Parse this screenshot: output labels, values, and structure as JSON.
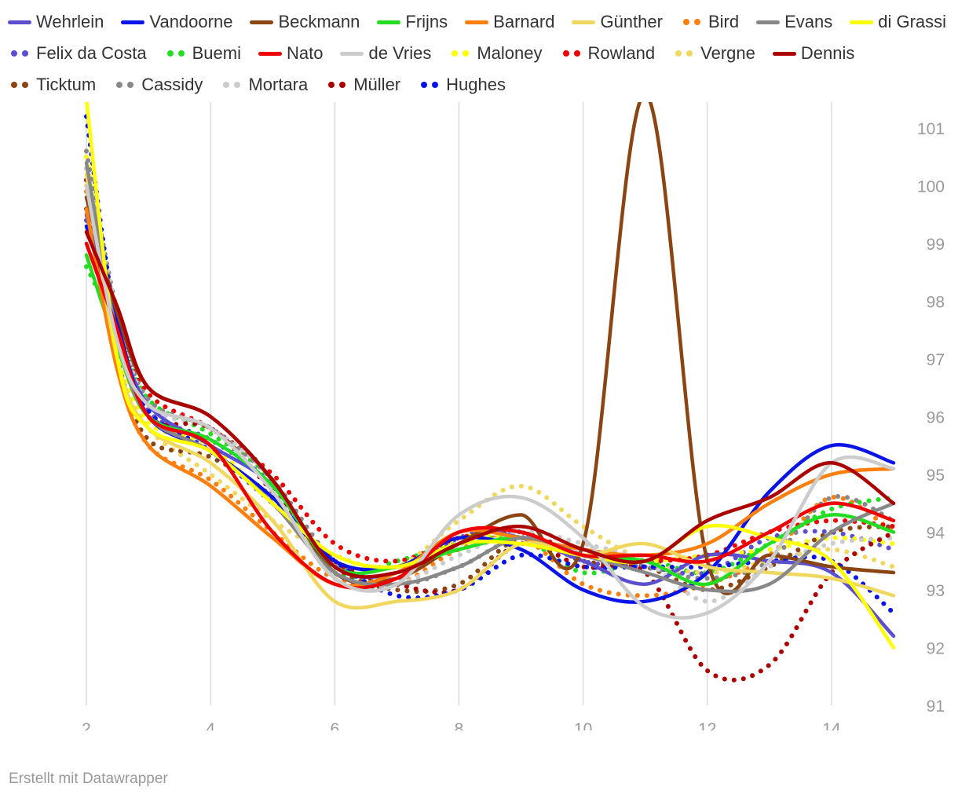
{
  "chart_data": {
    "type": "line",
    "title": "",
    "xlabel": "",
    "ylabel": "",
    "xlim": [
      2,
      15
    ],
    "ylim": [
      91,
      101.8
    ],
    "x_ticks": [
      2,
      4,
      6,
      8,
      10,
      12,
      14
    ],
    "y_ticks": [
      91,
      92,
      93,
      94,
      95,
      96,
      97,
      98,
      99,
      100,
      101
    ],
    "grid": "vertical",
    "legend_position": "top",
    "x": [
      2,
      2.5,
      3,
      4,
      5,
      6,
      7,
      8,
      9,
      10,
      11,
      12,
      13,
      14,
      15
    ],
    "series": [
      {
        "name": "Wehrlein",
        "color": "#5b4fcf",
        "style": "solid",
        "values": [
          99.5,
          97.5,
          96.2,
          95.5,
          94.8,
          93.4,
          93.3,
          94.0,
          93.9,
          93.5,
          93.1,
          93.6,
          93.5,
          93.3,
          92.2
        ]
      },
      {
        "name": "Vandoorne",
        "color": "#0a14e6",
        "style": "solid",
        "values": [
          99.3,
          97.6,
          96.0,
          95.4,
          94.6,
          93.5,
          93.4,
          93.9,
          93.7,
          93.0,
          92.8,
          93.3,
          94.7,
          95.5,
          95.2
        ]
      },
      {
        "name": "Beckmann",
        "color": "#8b4513",
        "style": "solid",
        "values": [
          99.8,
          97.8,
          96.5,
          96.0,
          94.9,
          93.3,
          93.2,
          93.8,
          94.3,
          93.8,
          101.8,
          93.5,
          93.6,
          93.4,
          93.3
        ]
      },
      {
        "name": "Frijns",
        "color": "#22dd22",
        "style": "solid",
        "values": [
          98.8,
          97.2,
          96.0,
          95.6,
          94.8,
          93.4,
          93.4,
          93.7,
          93.9,
          93.6,
          93.5,
          93.1,
          93.8,
          94.3,
          94.0
        ]
      },
      {
        "name": "Barnard",
        "color": "#ff7f0e",
        "style": "solid",
        "values": [
          99.6,
          96.8,
          95.5,
          94.8,
          93.9,
          93.1,
          93.3,
          94.0,
          93.9,
          93.7,
          93.6,
          93.8,
          94.5,
          95.0,
          95.1
        ]
      },
      {
        "name": "Günther",
        "color": "#f0d860",
        "style": "solid",
        "values": [
          100.2,
          97.0,
          95.8,
          95.2,
          94.2,
          92.8,
          92.8,
          93.0,
          93.8,
          93.6,
          93.8,
          93.4,
          93.3,
          93.2,
          92.9
        ]
      },
      {
        "name": "Bird",
        "color": "#ff7f0e",
        "style": "dot",
        "values": [
          99.9,
          96.9,
          95.5,
          94.9,
          94.0,
          93.2,
          93.1,
          93.7,
          93.9,
          93.1,
          92.9,
          93.1,
          93.6,
          94.6,
          94.0
        ]
      },
      {
        "name": "Evans",
        "color": "#888888",
        "style": "solid",
        "values": [
          100.4,
          97.4,
          96.0,
          95.4,
          94.5,
          93.3,
          93.1,
          93.4,
          93.9,
          93.6,
          93.3,
          93.0,
          93.1,
          94.0,
          94.5
        ]
      },
      {
        "name": "di Grassi",
        "color": "#ffff00",
        "style": "solid",
        "values": [
          101.5,
          97.0,
          95.8,
          95.4,
          94.5,
          93.6,
          93.4,
          93.8,
          93.8,
          93.6,
          93.5,
          94.1,
          93.9,
          93.5,
          92.0
        ]
      },
      {
        "name": "Felix da Costa",
        "color": "#5b4fcf",
        "style": "dot",
        "values": [
          99.4,
          97.6,
          96.1,
          95.6,
          94.8,
          93.3,
          93.2,
          93.9,
          94.0,
          93.5,
          93.4,
          93.3,
          93.9,
          94.0,
          93.7
        ]
      },
      {
        "name": "Buemi",
        "color": "#22dd22",
        "style": "dot",
        "values": [
          98.6,
          97.5,
          96.3,
          95.7,
          94.9,
          93.3,
          93.5,
          93.8,
          93.9,
          93.3,
          93.5,
          93.3,
          93.8,
          94.4,
          94.6
        ]
      },
      {
        "name": "Nato",
        "color": "#ee0000",
        "style": "solid",
        "values": [
          99.0,
          97.5,
          96.0,
          95.5,
          94.0,
          93.1,
          93.2,
          94.0,
          94.0,
          93.6,
          93.6,
          93.5,
          94.0,
          94.5,
          94.2
        ]
      },
      {
        "name": "de Vries",
        "color": "#cccccc",
        "style": "solid",
        "values": [
          100.0,
          97.3,
          96.2,
          95.8,
          94.7,
          93.2,
          93.1,
          94.3,
          94.6,
          93.9,
          92.7,
          92.6,
          93.5,
          95.2,
          95.1
        ]
      },
      {
        "name": "Maloney",
        "color": "#ffff00",
        "style": "dot",
        "values": [
          100.5,
          97.2,
          95.9,
          95.5,
          94.5,
          93.5,
          93.4,
          93.9,
          93.9,
          93.6,
          93.5,
          93.6,
          93.7,
          93.9,
          93.8
        ]
      },
      {
        "name": "Rowland",
        "color": "#ee0000",
        "style": "dot",
        "values": [
          100.3,
          97.7,
          96.4,
          95.8,
          95.0,
          93.8,
          93.5,
          93.9,
          94.0,
          93.6,
          93.5,
          93.6,
          94.0,
          94.2,
          94.1
        ]
      },
      {
        "name": "Vergne",
        "color": "#f0d860",
        "style": "dot",
        "values": [
          100.0,
          97.0,
          95.8,
          95.0,
          94.2,
          93.6,
          93.4,
          94.2,
          94.8,
          94.1,
          93.5,
          93.3,
          93.5,
          93.7,
          93.4
        ]
      },
      {
        "name": "Dennis",
        "color": "#aa0000",
        "style": "solid",
        "values": [
          99.2,
          97.9,
          96.5,
          96.0,
          94.9,
          93.4,
          93.3,
          93.8,
          94.1,
          93.7,
          93.5,
          94.2,
          94.6,
          95.2,
          94.5
        ]
      },
      {
        "name": "Ticktum",
        "color": "#8b4513",
        "style": "dot",
        "values": [
          99.6,
          97.0,
          95.6,
          95.3,
          94.6,
          93.4,
          93.0,
          93.1,
          93.9,
          93.5,
          93.4,
          93.0,
          93.4,
          94.0,
          94.1
        ]
      },
      {
        "name": "Cassidy",
        "color": "#888888",
        "style": "dot",
        "values": [
          100.6,
          97.8,
          96.3,
          95.8,
          94.9,
          93.5,
          93.1,
          93.4,
          93.9,
          93.6,
          93.4,
          93.2,
          93.5,
          94.6,
          94.2
        ]
      },
      {
        "name": "Mortara",
        "color": "#cccccc",
        "style": "dot",
        "values": [
          100.3,
          97.8,
          96.2,
          95.8,
          94.9,
          93.2,
          93.1,
          93.6,
          94.0,
          93.8,
          93.5,
          92.8,
          93.4,
          93.8,
          93.9
        ]
      },
      {
        "name": "Müller",
        "color": "#aa0000",
        "style": "dot",
        "values": [
          100.1,
          97.6,
          96.0,
          95.8,
          94.7,
          93.5,
          93.1,
          93.0,
          93.8,
          93.4,
          93.3,
          91.6,
          91.7,
          93.3,
          94.0
        ]
      },
      {
        "name": "Hughes",
        "color": "#0a14e6",
        "style": "dot",
        "values": [
          101.2,
          97.5,
          96.1,
          95.4,
          94.5,
          93.5,
          92.9,
          93.0,
          93.6,
          93.4,
          93.4,
          93.4,
          93.5,
          93.5,
          92.6
        ]
      }
    ]
  },
  "footer": {
    "credit": "Erstellt mit Datawrapper"
  }
}
